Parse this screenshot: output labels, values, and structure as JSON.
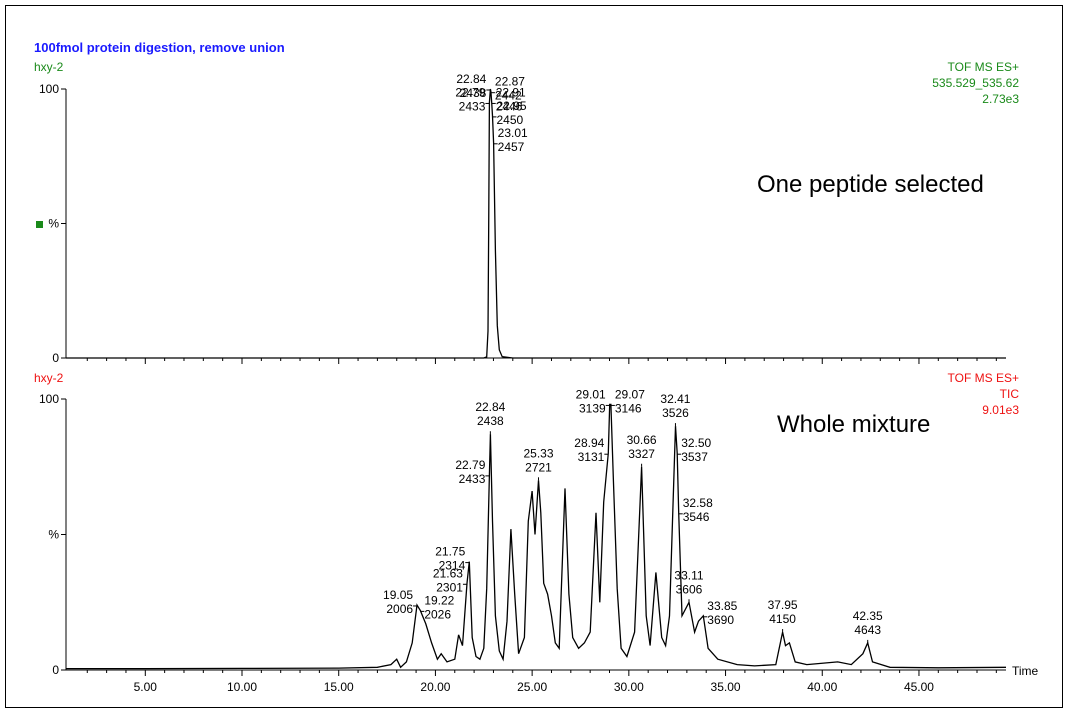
{
  "chart_data": {
    "type": "line",
    "title": "100fmol protein digestion, remove union",
    "xlabel": "Time",
    "xlim": [
      0.9,
      49.5
    ],
    "xticks": [
      "5.00",
      "10.00",
      "15.00",
      "20.00",
      "25.00",
      "30.00",
      "35.00",
      "40.00",
      "45.00"
    ],
    "line_color": "#000000",
    "panels": [
      {
        "sample": "hxy-2",
        "info": [
          "TOF MS ES+",
          "535.529_535.62",
          "2.73e3"
        ],
        "info_color": "#1a8a1a",
        "annotation": "One peptide selected",
        "y_ticks": [
          "100",
          "%",
          "0"
        ],
        "legend_marker_color": "#1a8a1a",
        "ylim": [
          0,
          100
        ],
        "trace": [
          [
            0.9,
            0
          ],
          [
            22.5,
            0
          ],
          [
            22.65,
            0.4
          ],
          [
            22.72,
            10
          ],
          [
            22.76,
            55
          ],
          [
            22.79,
            95
          ],
          [
            22.84,
            100
          ],
          [
            22.87,
            99
          ],
          [
            22.91,
            95
          ],
          [
            22.95,
            90
          ],
          [
            23.01,
            80
          ],
          [
            23.1,
            40
          ],
          [
            23.2,
            12
          ],
          [
            23.3,
            3
          ],
          [
            23.45,
            0.5
          ],
          [
            24,
            0
          ],
          [
            49.5,
            0
          ]
        ],
        "peak_labels": [
          {
            "rt": "22.84",
            "scan": "2438",
            "x": 22.84,
            "y": 100,
            "side": "left"
          },
          {
            "rt": "22.87",
            "scan": "2442",
            "x": 22.87,
            "y": 99,
            "side": "right"
          },
          {
            "rt": "22.79",
            "scan": "2433",
            "x": 22.79,
            "y": 95,
            "side": "left"
          },
          {
            "rt": "22.91",
            "scan": "2446",
            "x": 22.91,
            "y": 95,
            "side": "right"
          },
          {
            "rt": "22.95",
            "scan": "2450",
            "x": 22.95,
            "y": 90,
            "side": "right"
          },
          {
            "rt": "23.01",
            "scan": "2457",
            "x": 23.01,
            "y": 80,
            "side": "right"
          }
        ]
      },
      {
        "sample": "hxy-2",
        "info": [
          "TOF MS ES+",
          "TIC",
          "9.01e3"
        ],
        "info_color": "#ee1111",
        "annotation": "Whole mixture",
        "y_ticks": [
          "100",
          "%",
          "0"
        ],
        "ylim": [
          0,
          100
        ],
        "trace": [
          [
            0.9,
            0.5
          ],
          [
            5,
            0.5
          ],
          [
            10,
            0.6
          ],
          [
            15,
            0.7
          ],
          [
            17,
            1
          ],
          [
            17.7,
            2
          ],
          [
            18,
            4
          ],
          [
            18.2,
            1
          ],
          [
            18.5,
            3
          ],
          [
            18.8,
            10
          ],
          [
            19.05,
            24
          ],
          [
            19.22,
            22
          ],
          [
            19.5,
            17
          ],
          [
            19.8,
            10
          ],
          [
            20.1,
            4
          ],
          [
            20.3,
            6
          ],
          [
            20.6,
            3
          ],
          [
            21,
            4
          ],
          [
            21.2,
            13
          ],
          [
            21.4,
            9
          ],
          [
            21.63,
            32
          ],
          [
            21.75,
            40
          ],
          [
            21.9,
            12
          ],
          [
            22.1,
            5
          ],
          [
            22.3,
            4
          ],
          [
            22.5,
            8
          ],
          [
            22.65,
            30
          ],
          [
            22.79,
            72
          ],
          [
            22.84,
            87
          ],
          [
            22.95,
            55
          ],
          [
            23.1,
            20
          ],
          [
            23.3,
            7
          ],
          [
            23.5,
            4
          ],
          [
            23.7,
            18
          ],
          [
            23.9,
            52
          ],
          [
            24.1,
            28
          ],
          [
            24.3,
            6
          ],
          [
            24.6,
            12
          ],
          [
            24.8,
            55
          ],
          [
            25,
            66
          ],
          [
            25.15,
            50
          ],
          [
            25.33,
            70
          ],
          [
            25.45,
            58
          ],
          [
            25.6,
            32
          ],
          [
            25.8,
            28
          ],
          [
            26,
            20
          ],
          [
            26.2,
            10
          ],
          [
            26.4,
            8
          ],
          [
            26.7,
            67
          ],
          [
            26.9,
            28
          ],
          [
            27.1,
            12
          ],
          [
            27.4,
            8
          ],
          [
            27.7,
            10
          ],
          [
            28,
            14
          ],
          [
            28.3,
            58
          ],
          [
            28.5,
            25
          ],
          [
            28.7,
            62
          ],
          [
            28.94,
            80
          ],
          [
            29.01,
            98
          ],
          [
            29.07,
            98
          ],
          [
            29.2,
            70
          ],
          [
            29.4,
            30
          ],
          [
            29.6,
            8
          ],
          [
            29.9,
            5
          ],
          [
            30.3,
            14
          ],
          [
            30.66,
            75
          ],
          [
            30.9,
            20
          ],
          [
            31.1,
            9
          ],
          [
            31.4,
            36
          ],
          [
            31.7,
            12
          ],
          [
            31.9,
            9
          ],
          [
            32.1,
            20
          ],
          [
            32.41,
            90
          ],
          [
            32.5,
            80
          ],
          [
            32.58,
            58
          ],
          [
            32.75,
            20
          ],
          [
            33.11,
            25
          ],
          [
            33.4,
            14
          ],
          [
            33.6,
            18
          ],
          [
            33.85,
            20
          ],
          [
            34.1,
            8
          ],
          [
            34.6,
            4
          ],
          [
            35.6,
            2
          ],
          [
            36.5,
            1.5
          ],
          [
            37.6,
            2
          ],
          [
            37.95,
            14
          ],
          [
            38.1,
            9
          ],
          [
            38.3,
            10
          ],
          [
            38.6,
            3
          ],
          [
            39.2,
            2
          ],
          [
            40.8,
            3
          ],
          [
            41.5,
            2
          ],
          [
            42.1,
            6
          ],
          [
            42.35,
            10
          ],
          [
            42.6,
            3
          ],
          [
            43.5,
            1
          ],
          [
            46,
            0.8
          ],
          [
            49.5,
            1
          ]
        ],
        "peak_labels": [
          {
            "rt": "22.84",
            "scan": "2438",
            "x": 22.84,
            "y": 87,
            "side": "above"
          },
          {
            "rt": "22.79",
            "scan": "2433",
            "x": 22.79,
            "y": 72,
            "side": "left"
          },
          {
            "rt": "25.33",
            "scan": "2721",
            "x": 25.33,
            "y": 70,
            "side": "above"
          },
          {
            "rt": "21.75",
            "scan": "2314",
            "x": 21.75,
            "y": 40,
            "side": "left"
          },
          {
            "rt": "21.63",
            "scan": "2301",
            "x": 21.63,
            "y": 32,
            "side": "left"
          },
          {
            "rt": "19.05",
            "scan": "2006",
            "x": 19.05,
            "y": 24,
            "side": "left"
          },
          {
            "rt": "19.22",
            "scan": "2026",
            "x": 19.22,
            "y": 22,
            "side": "right"
          },
          {
            "rt": "29.01",
            "scan": "3139",
            "x": 29.01,
            "y": 98,
            "side": "left"
          },
          {
            "rt": "29.07",
            "scan": "3146",
            "x": 29.07,
            "y": 98,
            "side": "right"
          },
          {
            "rt": "28.94",
            "scan": "3131",
            "x": 28.94,
            "y": 80,
            "side": "left"
          },
          {
            "rt": "30.66",
            "scan": "3327",
            "x": 30.66,
            "y": 75,
            "side": "above"
          },
          {
            "rt": "32.41",
            "scan": "3526",
            "x": 32.41,
            "y": 90,
            "side": "above"
          },
          {
            "rt": "32.50",
            "scan": "3537",
            "x": 32.5,
            "y": 80,
            "side": "right"
          },
          {
            "rt": "32.58",
            "scan": "3546",
            "x": 32.58,
            "y": 58,
            "side": "right"
          },
          {
            "rt": "33.11",
            "scan": "3606",
            "x": 33.11,
            "y": 25,
            "side": "above"
          },
          {
            "rt": "33.85",
            "scan": "3690",
            "x": 33.85,
            "y": 20,
            "side": "right"
          },
          {
            "rt": "37.95",
            "scan": "4150",
            "x": 37.95,
            "y": 14,
            "side": "above"
          },
          {
            "rt": "42.35",
            "scan": "4643",
            "x": 42.35,
            "y": 10,
            "side": "above"
          }
        ]
      }
    ]
  }
}
